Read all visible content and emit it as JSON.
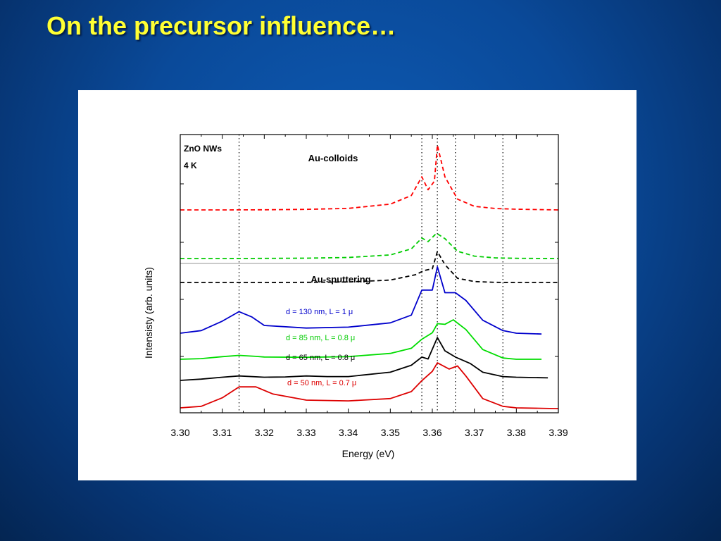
{
  "slide": {
    "title": "On the precursor influence…"
  },
  "chart_data": {
    "type": "line",
    "xlabel": "Energy (eV)",
    "ylabel": "Intensisty (arb. units)",
    "xlim": [
      3.3,
      3.39
    ],
    "x_ticks": [
      "3.30",
      "3.31",
      "3.32",
      "3.33",
      "3.34",
      "3.35",
      "3.36",
      "3.37",
      "3.38",
      "3.39"
    ],
    "annotations": {
      "sample": "ZnO NWs",
      "temperature": "4 K"
    },
    "vertical_reference_lines": [
      3.314,
      3.3575,
      3.3612,
      3.3655,
      3.3768
    ],
    "panels": [
      {
        "title": "Au-colloids",
        "line_style": "dashed",
        "series": [
          {
            "color": "#ff0000",
            "points": [
              [
                3.3,
                0.1
              ],
              [
                3.31,
                0.1
              ],
              [
                3.32,
                0.102
              ],
              [
                3.33,
                0.108
              ],
              [
                3.34,
                0.122
              ],
              [
                3.35,
                0.18
              ],
              [
                3.355,
                0.3
              ],
              [
                3.3575,
                0.56
              ],
              [
                3.359,
                0.38
              ],
              [
                3.3605,
                0.5
              ],
              [
                3.3612,
                1.0
              ],
              [
                3.363,
                0.56
              ],
              [
                3.366,
                0.25
              ],
              [
                3.37,
                0.15
              ],
              [
                3.375,
                0.12
              ],
              [
                3.38,
                0.11
              ],
              [
                3.39,
                0.1
              ]
            ]
          },
          {
            "color": "#00cc00",
            "points": [
              [
                3.3,
                0.1
              ],
              [
                3.31,
                0.1
              ],
              [
                3.32,
                0.102
              ],
              [
                3.33,
                0.106
              ],
              [
                3.34,
                0.118
              ],
              [
                3.35,
                0.16
              ],
              [
                3.355,
                0.26
              ],
              [
                3.3575,
                0.44
              ],
              [
                3.359,
                0.38
              ],
              [
                3.361,
                0.52
              ],
              [
                3.363,
                0.43
              ],
              [
                3.366,
                0.22
              ],
              [
                3.37,
                0.14
              ],
              [
                3.375,
                0.11
              ],
              [
                3.38,
                0.104
              ],
              [
                3.39,
                0.1
              ]
            ]
          },
          {
            "color": "#000000",
            "points": [
              [
                3.3,
                0.1
              ],
              [
                3.31,
                0.1
              ],
              [
                3.32,
                0.1
              ],
              [
                3.33,
                0.102
              ],
              [
                3.34,
                0.108
              ],
              [
                3.35,
                0.14
              ],
              [
                3.356,
                0.23
              ],
              [
                3.358,
                0.3
              ],
              [
                3.36,
                0.33
              ],
              [
                3.3612,
                0.62
              ],
              [
                3.363,
                0.4
              ],
              [
                3.366,
                0.17
              ],
              [
                3.37,
                0.115
              ],
              [
                3.375,
                0.102
              ],
              [
                3.38,
                0.1
              ],
              [
                3.39,
                0.1
              ]
            ]
          }
        ]
      },
      {
        "title": "Au-sputtering",
        "line_style": "solid",
        "series": [
          {
            "label": "d = 130 nm, L = 1 μ",
            "color": "#0000cc",
            "points": [
              [
                3.3,
                0.15
              ],
              [
                3.305,
                0.18
              ],
              [
                3.31,
                0.29
              ],
              [
                3.314,
                0.4
              ],
              [
                3.317,
                0.34
              ],
              [
                3.32,
                0.24
              ],
              [
                3.33,
                0.21
              ],
              [
                3.34,
                0.22
              ],
              [
                3.35,
                0.27
              ],
              [
                3.355,
                0.36
              ],
              [
                3.3575,
                0.65
              ],
              [
                3.36,
                0.65
              ],
              [
                3.3612,
                0.92
              ],
              [
                3.363,
                0.62
              ],
              [
                3.3655,
                0.62
              ],
              [
                3.368,
                0.53
              ],
              [
                3.372,
                0.3
              ],
              [
                3.3768,
                0.18
              ],
              [
                3.38,
                0.15
              ],
              [
                3.386,
                0.14
              ]
            ]
          },
          {
            "label": "d = 85 nm, L = 0.8 μ",
            "color": "#00dd00",
            "points": [
              [
                3.3,
                0.15
              ],
              [
                3.305,
                0.16
              ],
              [
                3.31,
                0.19
              ],
              [
                3.314,
                0.21
              ],
              [
                3.318,
                0.195
              ],
              [
                3.32,
                0.185
              ],
              [
                3.33,
                0.18
              ],
              [
                3.34,
                0.19
              ],
              [
                3.35,
                0.24
              ],
              [
                3.355,
                0.32
              ],
              [
                3.3575,
                0.46
              ],
              [
                3.36,
                0.56
              ],
              [
                3.3612,
                0.7
              ],
              [
                3.363,
                0.69
              ],
              [
                3.365,
                0.76
              ],
              [
                3.368,
                0.61
              ],
              [
                3.372,
                0.3
              ],
              [
                3.3768,
                0.17
              ],
              [
                3.38,
                0.15
              ],
              [
                3.386,
                0.15
              ]
            ]
          },
          {
            "label": "d = 65 nm, L = 0.8 μ",
            "color": "#000000",
            "points": [
              [
                3.3,
                0.15
              ],
              [
                3.305,
                0.17
              ],
              [
                3.31,
                0.2
              ],
              [
                3.314,
                0.22
              ],
              [
                3.32,
                0.2
              ],
              [
                3.325,
                0.205
              ],
              [
                3.33,
                0.22
              ],
              [
                3.335,
                0.21
              ],
              [
                3.34,
                0.21
              ],
              [
                3.35,
                0.28
              ],
              [
                3.355,
                0.39
              ],
              [
                3.3575,
                0.52
              ],
              [
                3.359,
                0.49
              ],
              [
                3.3612,
                0.83
              ],
              [
                3.363,
                0.62
              ],
              [
                3.3655,
                0.52
              ],
              [
                3.369,
                0.42
              ],
              [
                3.372,
                0.28
              ],
              [
                3.3768,
                0.21
              ],
              [
                3.38,
                0.2
              ],
              [
                3.3875,
                0.19
              ]
            ]
          },
          {
            "label": "d = 50 nm, L = 0.7 μ",
            "color": "#dd0000",
            "points": [
              [
                3.3,
                0.12
              ],
              [
                3.305,
                0.14
              ],
              [
                3.31,
                0.25
              ],
              [
                3.314,
                0.39
              ],
              [
                3.318,
                0.39
              ],
              [
                3.322,
                0.3
              ],
              [
                3.33,
                0.22
              ],
              [
                3.34,
                0.21
              ],
              [
                3.35,
                0.24
              ],
              [
                3.355,
                0.33
              ],
              [
                3.3575,
                0.47
              ],
              [
                3.36,
                0.59
              ],
              [
                3.3612,
                0.7
              ],
              [
                3.364,
                0.62
              ],
              [
                3.366,
                0.66
              ],
              [
                3.368,
                0.53
              ],
              [
                3.372,
                0.24
              ],
              [
                3.3768,
                0.14
              ],
              [
                3.38,
                0.12
              ],
              [
                3.39,
                0.11
              ]
            ]
          }
        ]
      }
    ]
  }
}
